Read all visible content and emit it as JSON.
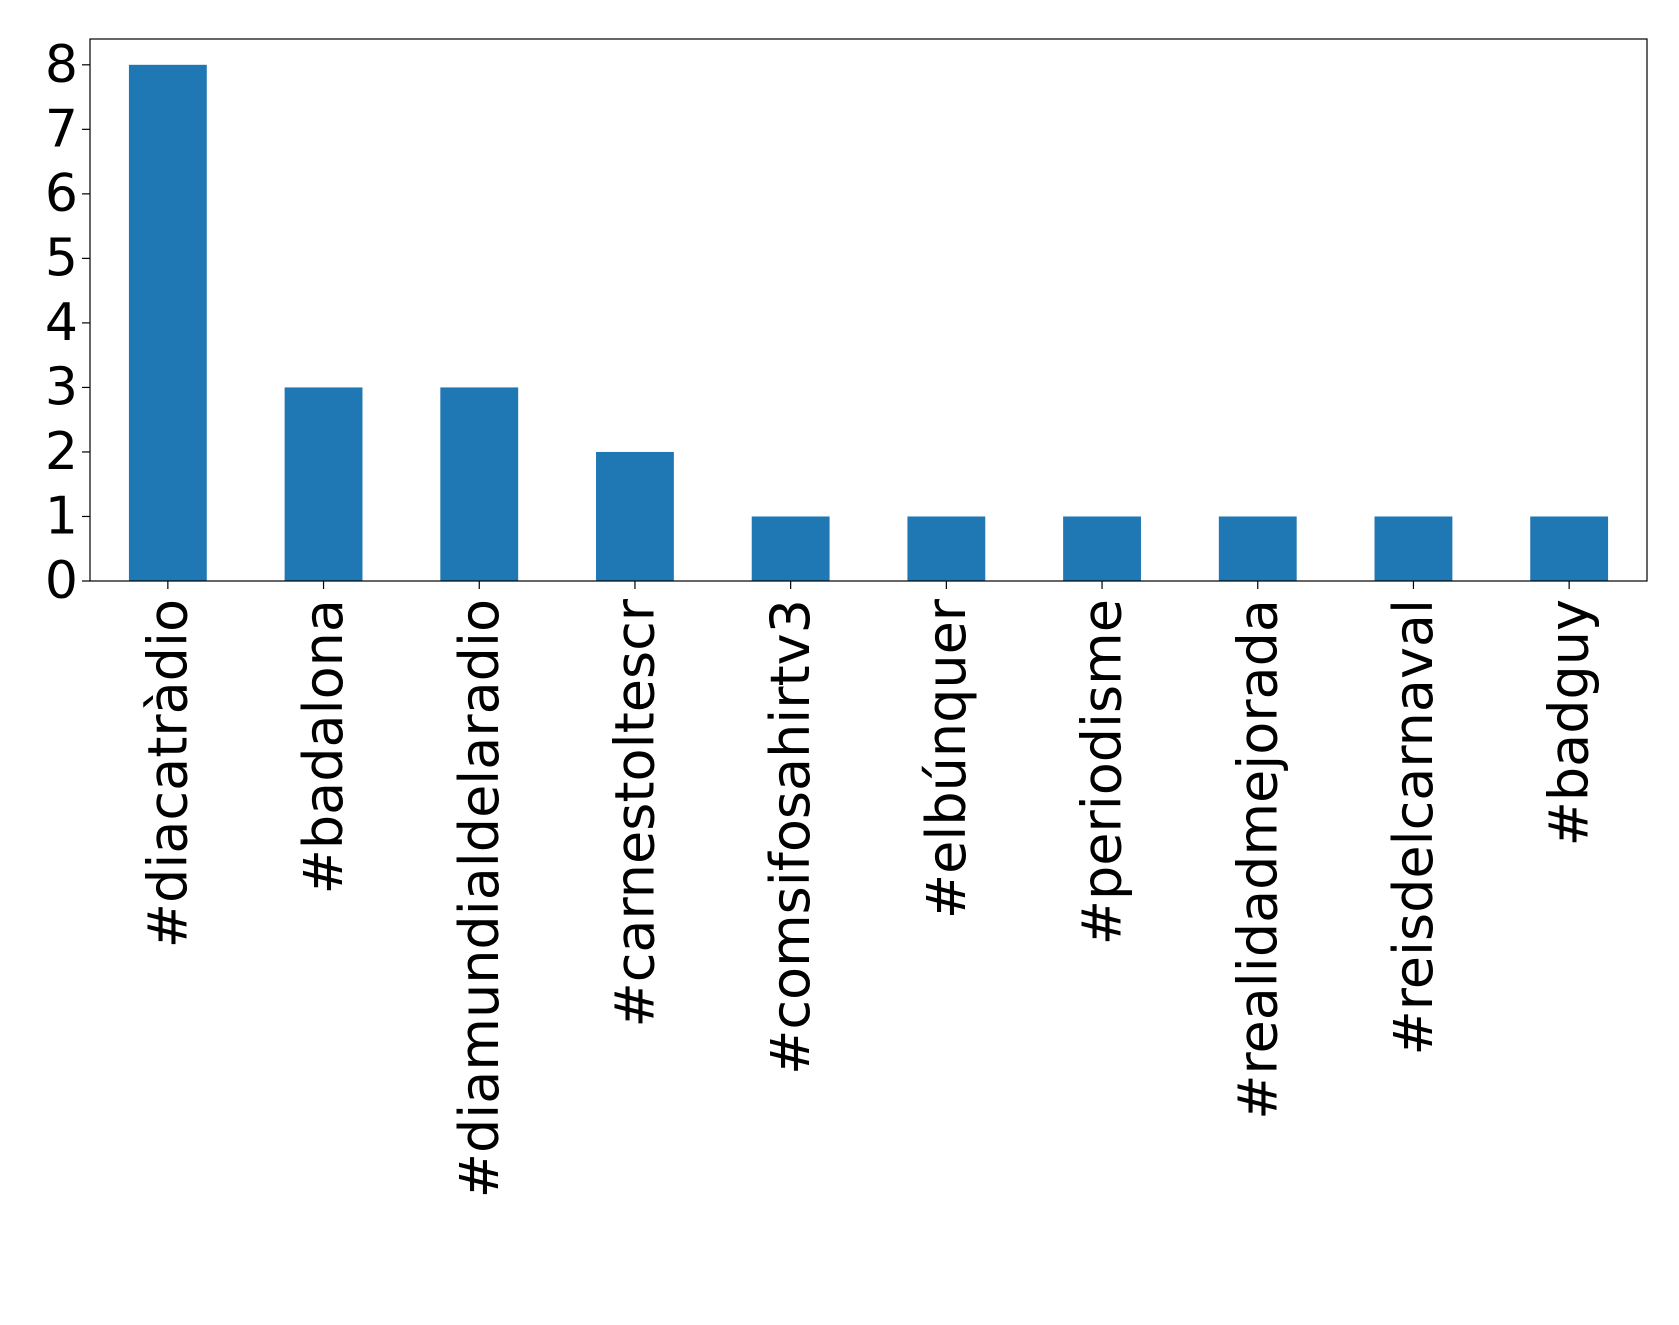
{
  "chart_data": {
    "type": "bar",
    "categories": [
      "#diacatràdio",
      "#badalona",
      "#diamundialdelaradio",
      "#carnestoltescr",
      "#comsifosahirtv3",
      "#elbúnquer",
      "#periodisme",
      "#realidadmejorada",
      "#reisdelcarnaval",
      "#badguy"
    ],
    "values": [
      8,
      3,
      3,
      2,
      1,
      1,
      1,
      1,
      1,
      1
    ],
    "color": "#1f77b4",
    "ylim": [
      0,
      8.4
    ],
    "yticks": [
      0,
      1,
      2,
      3,
      4,
      5,
      6,
      7,
      8
    ],
    "grid": false
  }
}
